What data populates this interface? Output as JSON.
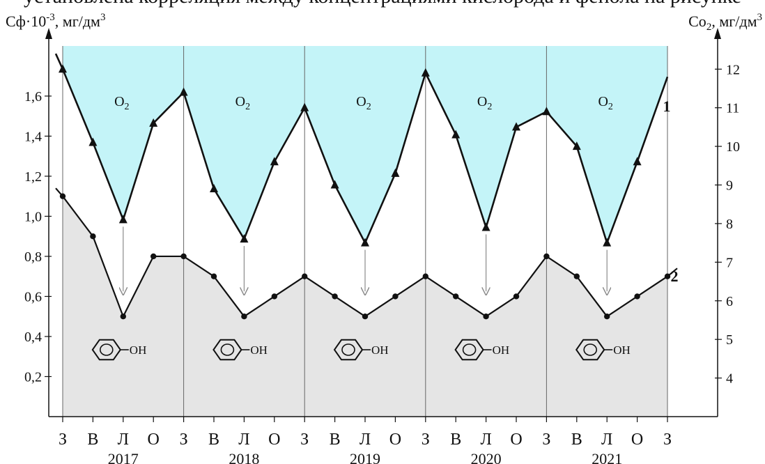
{
  "top_text": "установлена корреляция между концентрациями кислорода и фенола на рисунке",
  "chart_data": {
    "type": "line",
    "x": [
      "З",
      "В",
      "Л",
      "О",
      "З",
      "В",
      "Л",
      "О",
      "З",
      "В",
      "Л",
      "О",
      "З",
      "В",
      "Л",
      "О",
      "З",
      "В",
      "Л",
      "О",
      "З"
    ],
    "years": [
      "2017",
      "2018",
      "2019",
      "2020",
      "2021"
    ],
    "left_axis": {
      "label": "Сф·10-3, мг/дм3",
      "label_main": "Сф·10",
      "label_sup": "-3",
      "label_unit": ", мг/дм",
      "label_unit_sup": "3",
      "ticks": [
        "0,2",
        "0,4",
        "0,6",
        "0,8",
        "1,0",
        "1,2",
        "1,4",
        "1,6"
      ],
      "tick_values": [
        0.2,
        0.4,
        0.6,
        0.8,
        1.0,
        1.2,
        1.4,
        1.6
      ],
      "ylim": [
        0,
        1.85
      ]
    },
    "right_axis": {
      "label": "Со2, мг/дм3",
      "label_main": "Со",
      "label_sub": "2",
      "label_unit": ", мг/дм",
      "label_unit_sup": "3",
      "ticks": [
        "4",
        "5",
        "6",
        "7",
        "8",
        "9",
        "10",
        "11",
        "12"
      ],
      "tick_values": [
        4,
        5,
        6,
        7,
        8,
        9,
        10,
        11,
        12
      ],
      "ylim": [
        3,
        12.6
      ]
    },
    "series": [
      {
        "name": "1",
        "axis": "right",
        "marker": "triangle",
        "values": [
          12.0,
          10.1,
          8.1,
          10.6,
          11.4,
          8.9,
          7.6,
          9.6,
          11.0,
          9.0,
          7.5,
          9.3,
          11.9,
          10.3,
          7.9,
          10.5,
          10.9,
          10.0,
          7.5,
          9.6,
          null
        ],
        "extensions": {
          "start": 12.4,
          "end": 11.8
        }
      },
      {
        "name": "2",
        "axis": "left",
        "marker": "circle",
        "values": [
          1.1,
          0.9,
          0.5,
          0.8,
          0.8,
          0.7,
          0.5,
          0.6,
          0.7,
          0.6,
          0.5,
          0.6,
          0.7,
          0.6,
          0.5,
          0.6,
          0.8,
          0.7,
          0.5,
          0.6,
          0.7
        ],
        "extensions": {
          "start": 1.14,
          "end": 0.74
        }
      }
    ],
    "annotations": {
      "o2_label": "O2",
      "o2_main": "O",
      "o2_sub": "2",
      "oh_label": "OH"
    },
    "colors": {
      "o2_fill": "#c4f4f8",
      "phenol_fill": "#e5e5e5",
      "line": "#111111",
      "arrow": "#8a8a8a"
    }
  }
}
